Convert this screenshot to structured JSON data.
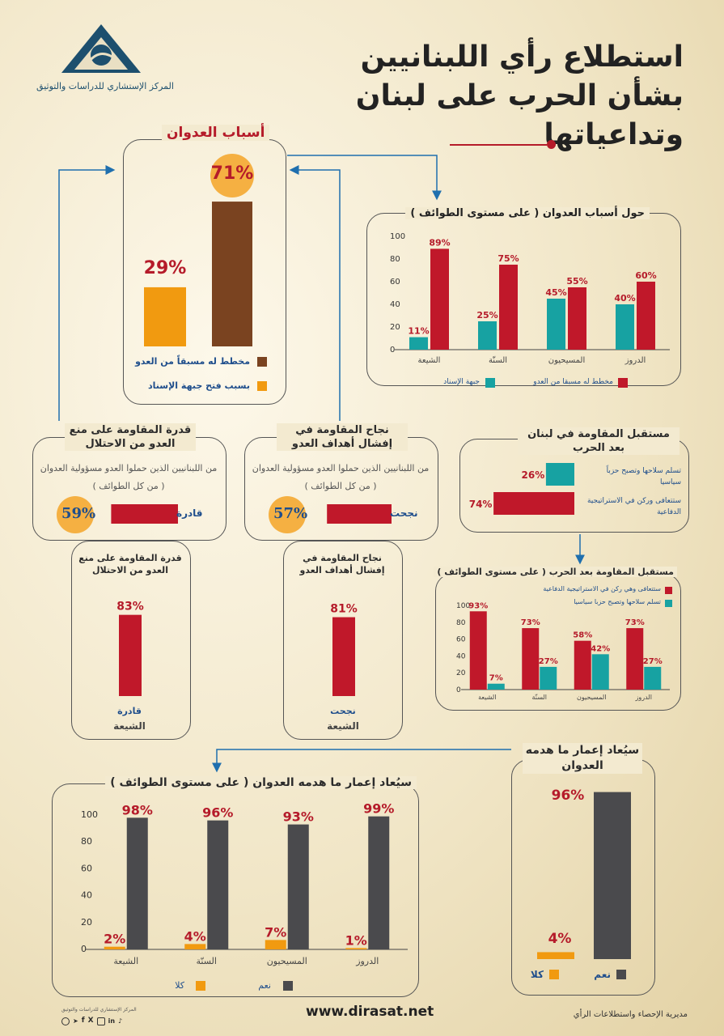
{
  "header": {
    "org_name": "المركز الإستشاري للدراسات والتوثيق",
    "title_lines": [
      "استطلاع رأي اللبنانيين",
      "بشأن الحرب على لبنان",
      "وتداعياتها"
    ]
  },
  "colors": {
    "red": "#c0182a",
    "teal": "#17a2a2",
    "brown": "#7a4320",
    "orange": "#f19a10",
    "dark": "#4a4a4d",
    "circle": "#f5b042"
  },
  "causes_panel": {
    "title": "أسباب العدوان",
    "legend": [
      "مخطط له مسبقاً من العدو",
      "بسبب فتح جبهة الإسناد"
    ]
  },
  "sects_panel": {
    "title": "حول أسباب العدوان ( على مستوى الطوائف )",
    "legend": [
      "مخطط له مسبقا من العدو",
      "جبهة الإسناد"
    ]
  },
  "deter_panel": {
    "title": "قدرة المقاومة على منع العدو من الاحتلال",
    "subtitle": "من اللبنانيين الذين حملوا العدو مسؤولية العدوان ( من كل الطوائف )",
    "bar_label": "قادرة",
    "value_label": "59%"
  },
  "success_panel": {
    "title": "نجاح المقاومة في إفشال أهداف العدو",
    "subtitle": "من اللبنانيين الذين حملوا العدو مسؤولية العدوان ( من كل الطوائف )",
    "bar_label": "نجحت",
    "value_label": "57%"
  },
  "future_panel": {
    "title": "مستقبل المقاومة في لبنان بعد الحرب",
    "items": [
      "تسلم سلاحها وتصبح حزباً سياسيا",
      "ستتعافى وركن في الاستراتيجية الدفاعية"
    ]
  },
  "deter_shia": {
    "title": "قدرة المقاومة على منع العدو من الاحتلال",
    "bar_label": "قادرة",
    "group_label": "الشيعة"
  },
  "success_shia": {
    "title": "نجاح المقاومة في إفشال أهداف العدو",
    "bar_label": "نجحت",
    "group_label": "الشيعة"
  },
  "future_sects": {
    "title": "مستقبل المقاومة بعد الحرب ( على مستوى الطوائف )",
    "legend": [
      "ستتعافى وهي ركن في الاستراتيجية الدفاعية",
      "تسلم سلاحها وتصبح حزبا سياسيا"
    ]
  },
  "rebuild_panel": {
    "title": "سيُعاد إعمار ما هدمه العدوان",
    "legend": [
      "نعم",
      "كلا"
    ]
  },
  "rebuild_sects": {
    "title": "سيُعاد إعمار ما هدمه العدوان ( على مستوى الطوائف )",
    "legend": [
      "نعم",
      "كلا"
    ]
  },
  "footer": {
    "website": "www.dirasat.net",
    "directorate": "مديرية الإحصاء واستطلاعات الرأي",
    "social_icons": [
      "whatsapp-icon",
      "telegram-icon",
      "facebook-icon",
      "x-icon",
      "instagram-icon",
      "linkedin-icon",
      "tiktok-icon"
    ]
  },
  "chart_data": [
    {
      "id": "causes",
      "type": "bar",
      "categories": [
        "بسبب فتح جبهة الإسناد",
        "مخطط له مسبقاً من العدو"
      ],
      "values": [
        29,
        71
      ],
      "value_labels": [
        "29%",
        "71%"
      ],
      "ylim": [
        0,
        100
      ]
    },
    {
      "id": "causes_by_sect",
      "type": "bar",
      "categories": [
        "الشيعة",
        "السنّة",
        "المسيحيون",
        "الدروز"
      ],
      "series": [
        {
          "name": "جبهة الإسناد",
          "values": [
            11,
            25,
            45,
            40
          ]
        },
        {
          "name": "مخطط له مسبقا من العدو",
          "values": [
            89,
            75,
            55,
            60
          ]
        }
      ],
      "value_labels": [
        [
          "11%",
          "25%",
          "45%",
          "40%"
        ],
        [
          "89%",
          "75%",
          "55%",
          "60%"
        ]
      ],
      "yticks": [
        0,
        20,
        40,
        60,
        80,
        100
      ],
      "ylim": [
        0,
        100
      ]
    },
    {
      "id": "deterrence_all",
      "type": "bar",
      "categories": [
        "قادرة"
      ],
      "values": [
        59
      ],
      "ylim": [
        0,
        100
      ]
    },
    {
      "id": "success_all",
      "type": "bar",
      "categories": [
        "نجحت"
      ],
      "values": [
        57
      ],
      "ylim": [
        0,
        100
      ]
    },
    {
      "id": "future",
      "type": "bar",
      "categories": [
        "تسلم سلاحها وتصبح حزباً سياسيا",
        "ستتعافى وركن في الاستراتيجية الدفاعية"
      ],
      "values": [
        26,
        74
      ],
      "value_labels": [
        "26%",
        "74%"
      ],
      "ylim": [
        0,
        100
      ]
    },
    {
      "id": "deterrence_shia",
      "type": "bar",
      "categories": [
        "قادرة"
      ],
      "values": [
        83
      ],
      "value_labels": [
        "83%"
      ],
      "ylim": [
        0,
        100
      ]
    },
    {
      "id": "success_shia",
      "type": "bar",
      "categories": [
        "نجحت"
      ],
      "values": [
        81
      ],
      "value_labels": [
        "81%"
      ],
      "ylim": [
        0,
        100
      ]
    },
    {
      "id": "future_by_sect",
      "type": "bar",
      "categories": [
        "الشيعة",
        "السنّة",
        "المسيحيون",
        "الدروز"
      ],
      "series": [
        {
          "name": "ستتعافى وهي ركن في الاستراتيجية الدفاعية",
          "values": [
            93,
            73,
            58,
            73
          ]
        },
        {
          "name": "تسلم سلاحها وتصبح حزبا سياسيا",
          "values": [
            7,
            27,
            42,
            27
          ]
        }
      ],
      "value_labels": [
        [
          "93%",
          "73%",
          "58%",
          "73%"
        ],
        [
          "7%",
          "27%",
          "42%",
          "27%"
        ]
      ],
      "yticks": [
        0,
        20,
        40,
        60,
        80,
        100
      ],
      "ylim": [
        0,
        100
      ]
    },
    {
      "id": "rebuild",
      "type": "bar",
      "categories": [
        "كلا",
        "نعم"
      ],
      "values": [
        4,
        96
      ],
      "value_labels": [
        "4%",
        "96%"
      ],
      "ylim": [
        0,
        100
      ]
    },
    {
      "id": "rebuild_by_sect",
      "type": "bar",
      "categories": [
        "الشيعة",
        "السنّة",
        "المسيحيون",
        "الدروز"
      ],
      "series": [
        {
          "name": "كلا",
          "values": [
            2,
            4,
            7,
            1
          ]
        },
        {
          "name": "نعم",
          "values": [
            98,
            96,
            93,
            99
          ]
        }
      ],
      "value_labels": [
        [
          "2%",
          "4%",
          "7%",
          "1%"
        ],
        [
          "98%",
          "96%",
          "93%",
          "99%"
        ]
      ],
      "yticks": [
        0,
        20,
        40,
        60,
        80,
        100
      ],
      "ylim": [
        0,
        100
      ]
    }
  ]
}
